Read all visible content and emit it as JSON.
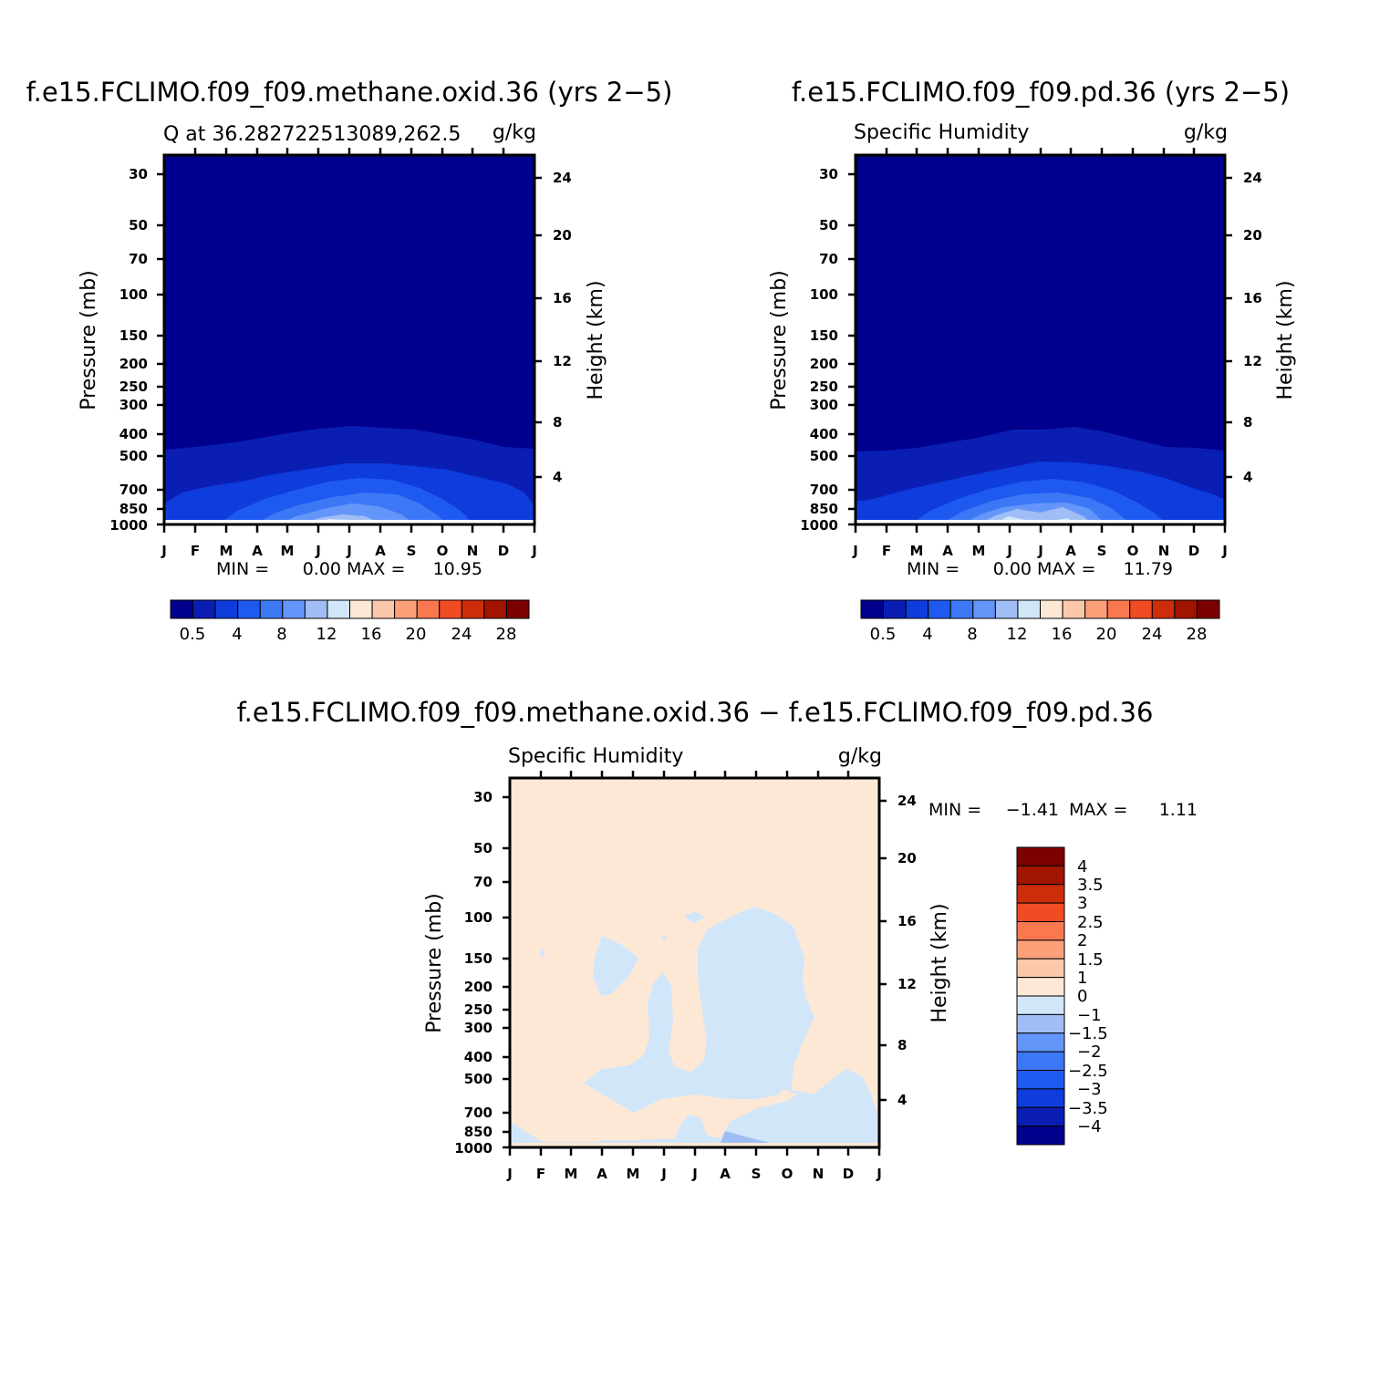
{
  "chart_data": [
    {
      "type": "heatmap",
      "title": "f.e15.FCLIMO.f09_f09.methane.oxid.36 (yrs 2−5)",
      "subtitle_left": "Q at 36.282722513089,262.5",
      "subtitle_right": "g/kg",
      "ylabel": "Pressure (mb)",
      "ylabel_right": "Height (km)",
      "x_ticks": [
        "J",
        "F",
        "M",
        "A",
        "M",
        "J",
        "J",
        "A",
        "S",
        "O",
        "N",
        "D",
        "J"
      ],
      "y_ticks": [
        "30",
        "50",
        "70",
        "100",
        "150",
        "200",
        "250",
        "300",
        "400",
        "500",
        "700",
        "850",
        "1000"
      ],
      "y_ticks_right": [
        "24",
        "20",
        "16",
        "12",
        "8",
        "4"
      ],
      "min_label": "MIN =",
      "min_value": "0.00",
      "max_label": "MAX =",
      "max_value": "10.95",
      "colorbar_labels": [
        "0.5",
        "4",
        "8",
        "12",
        "16",
        "20",
        "24",
        "28"
      ]
    },
    {
      "type": "heatmap",
      "title": "f.e15.FCLIMO.f09_f09.pd.36 (yrs 2−5)",
      "subtitle_left": "Specific Humidity",
      "subtitle_right": "g/kg",
      "ylabel": "Pressure (mb)",
      "ylabel_right": "Height (km)",
      "x_ticks": [
        "J",
        "F",
        "M",
        "A",
        "M",
        "J",
        "J",
        "A",
        "S",
        "O",
        "N",
        "D",
        "J"
      ],
      "y_ticks": [
        "30",
        "50",
        "70",
        "100",
        "150",
        "200",
        "250",
        "300",
        "400",
        "500",
        "700",
        "850",
        "1000"
      ],
      "y_ticks_right": [
        "24",
        "20",
        "16",
        "12",
        "8",
        "4"
      ],
      "min_label": "MIN =",
      "min_value": "0.00",
      "max_label": "MAX =",
      "max_value": "11.79",
      "colorbar_labels": [
        "0.5",
        "4",
        "8",
        "12",
        "16",
        "20",
        "24",
        "28"
      ]
    },
    {
      "type": "heatmap",
      "title": "f.e15.FCLIMO.f09_f09.methane.oxid.36 − f.e15.FCLIMO.f09_f09.pd.36",
      "subtitle_left": "Specific Humidity",
      "subtitle_right": "g/kg",
      "ylabel": "Pressure (mb)",
      "ylabel_right": "Height (km)",
      "x_ticks": [
        "J",
        "F",
        "M",
        "A",
        "M",
        "J",
        "J",
        "A",
        "S",
        "O",
        "N",
        "D",
        "J"
      ],
      "y_ticks": [
        "30",
        "50",
        "70",
        "100",
        "150",
        "200",
        "250",
        "300",
        "400",
        "500",
        "700",
        "850",
        "1000"
      ],
      "y_ticks_right": [
        "24",
        "20",
        "16",
        "12",
        "8",
        "4"
      ],
      "min_label": "MIN =",
      "min_value": "−1.41",
      "max_label": "MAX =",
      "max_value": "1.11",
      "colorbar_labels": [
        "4",
        "3.5",
        "3",
        "2.5",
        "2",
        "1.5",
        "1",
        "0",
        "−1",
        "−1.5",
        "−2",
        "−2.5",
        "−3",
        "−3.5",
        "−4"
      ]
    }
  ],
  "palette": [
    "#00008c",
    "#0a1eb4",
    "#0f3cdc",
    "#1e5af0",
    "#3c78f5",
    "#6496fa",
    "#a0bef5",
    "#d2e6fa",
    "#fde8d6",
    "#fcc8ac",
    "#fca07a",
    "#fa7850",
    "#f04b23",
    "#cd2d0a",
    "#a01400",
    "#7d0000"
  ],
  "diff_palette": [
    "#00008c",
    "#0a1eb4",
    "#0f3cdc",
    "#1e5af0",
    "#3c78f5",
    "#6496fa",
    "#a0bef5",
    "#d2e6fa",
    "#fde8d6",
    "#fcc8ac",
    "#fca07a",
    "#fa7850",
    "#f04b23",
    "#cd2d0a",
    "#a01400",
    "#7d0000"
  ]
}
